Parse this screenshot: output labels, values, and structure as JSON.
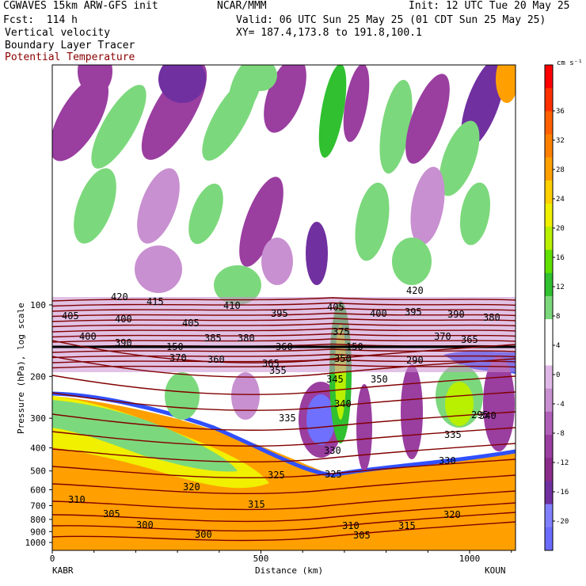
{
  "header": {
    "title_left": "CGWAVES 15km ARW-GFS init",
    "title_center": "NCAR/MMM",
    "init": "Init: 12 UTC Tue 20 May 25",
    "fcst": "Fcst:  114 h",
    "valid": "Valid: 06 UTC Sun 25 May 25 (01 CDT Sun 25 May 25)",
    "field1": "Vertical velocity",
    "field2": "Boundary Layer Tracer",
    "field3": "Potential Temperature",
    "xy": "XY= 187.4,173.8 to 191.8,100.1",
    "field3_color": "#8b0000"
  },
  "axes": {
    "ylabel": "Pressure (hPa), log scale",
    "xlabel": "Distance (km)",
    "left_station": "KABR",
    "right_station": "KOUN"
  },
  "chart_data": {
    "type": "heatmap",
    "y_axis": {
      "scale": "log",
      "range": [
        1000,
        10
      ],
      "ticks": [
        100,
        200,
        300,
        400,
        500,
        600,
        700,
        800,
        900,
        1000
      ]
    },
    "x_axis": {
      "range": [
        0,
        1110
      ],
      "ticks": [
        0,
        500,
        1000
      ]
    },
    "colorbar": {
      "unit": "cm s⁻¹",
      "ticks": [
        36,
        32,
        28,
        24,
        20,
        16,
        12,
        8,
        4,
        0,
        -4,
        -8,
        -12,
        -16,
        -20
      ],
      "colors": [
        "#6b6bff",
        "#8080ff",
        "#7030a0",
        "#8b2c8b",
        "#9a3ea0",
        "#b060b8",
        "#c890d0",
        "#e0b8e8",
        "#ffffff",
        "#ffffff",
        "#7cd87c",
        "#30c030",
        "#60e000",
        "#b8f000",
        "#f0f000",
        "#ffd000",
        "#ffa000",
        "#ff8000",
        "#ff6000",
        "#ff3000",
        "#ff0000"
      ]
    },
    "tropopause_line_label": "150",
    "theta_labels": [
      "420",
      "415",
      "410",
      "405",
      "400",
      "395",
      "405",
      "420",
      "400",
      "395",
      "390",
      "380",
      "405",
      "400",
      "390",
      "385",
      "380",
      "375",
      "370",
      "365",
      "360",
      "370",
      "360",
      "365",
      "355",
      "350",
      "345",
      "350",
      "340",
      "340",
      "335",
      "335",
      "330",
      "330",
      "325",
      "325",
      "320",
      "320",
      "315",
      "315",
      "310",
      "310",
      "305",
      "305",
      "300",
      "300",
      "295",
      "290"
    ]
  }
}
